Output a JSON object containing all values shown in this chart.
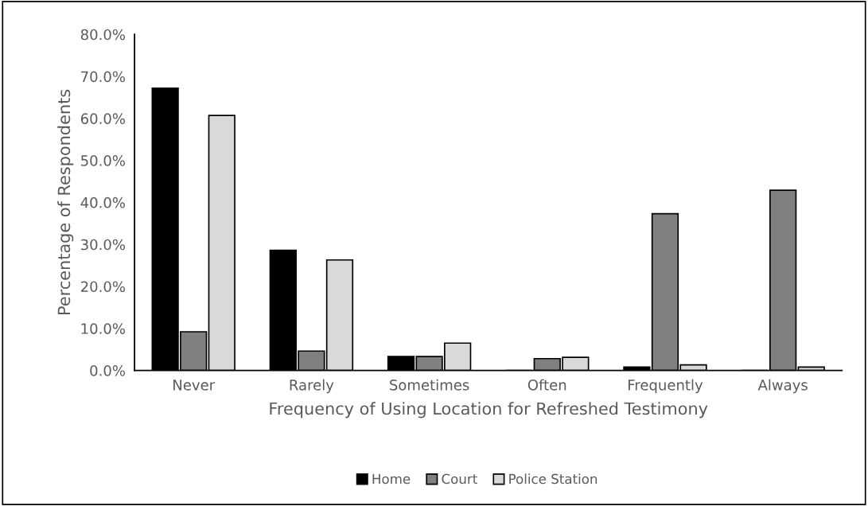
{
  "chart_data": {
    "type": "bar",
    "xlabel": "Frequency of Using Location for Refreshed Testimony",
    "ylabel": "Percentage of Respondents",
    "categories": [
      "Never",
      "Rarely",
      "Sometimes",
      "Often",
      "Frequently",
      "Always"
    ],
    "series": [
      {
        "name": "Home",
        "color": "#000000",
        "values": [
          67.2,
          28.6,
          3.3,
          0,
          0.8,
          0
        ]
      },
      {
        "name": "Court",
        "color": "#808080",
        "values": [
          9.2,
          4.6,
          3.3,
          2.8,
          37.3,
          42.9
        ]
      },
      {
        "name": "Police Station",
        "color": "#d9d9d9",
        "values": [
          60.7,
          26.3,
          6.5,
          3.1,
          1.3,
          0.8
        ]
      }
    ],
    "ylim": [
      0,
      80
    ],
    "yticks": [
      {
        "value": 0,
        "label": "0.0%"
      },
      {
        "value": 10,
        "label": "10.0%"
      },
      {
        "value": 20,
        "label": "20.0%"
      },
      {
        "value": 30,
        "label": "30.0%"
      },
      {
        "value": 40,
        "label": "40.0%"
      },
      {
        "value": 50,
        "label": "50.0%"
      },
      {
        "value": 60,
        "label": "60.0%"
      },
      {
        "value": 70,
        "label": "70.0%"
      },
      {
        "value": 80,
        "label": "80.0%"
      }
    ],
    "grid": false,
    "legend": "bottom"
  }
}
